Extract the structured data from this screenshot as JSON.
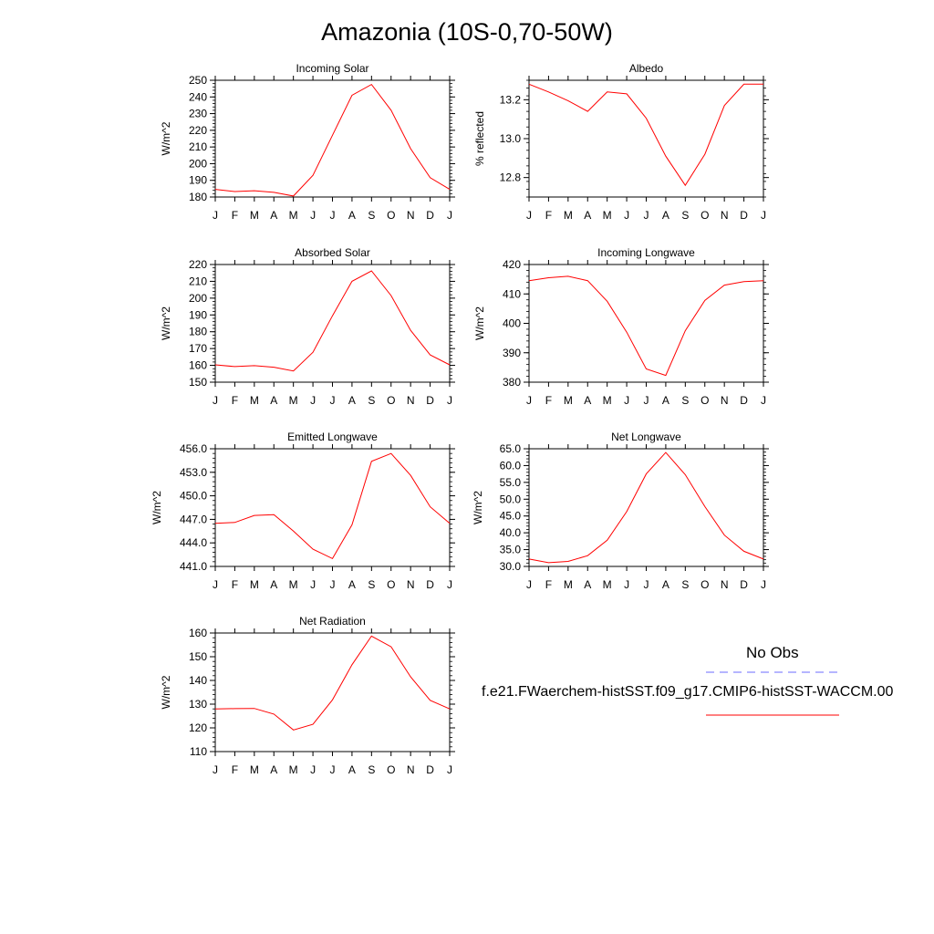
{
  "figure": {
    "title": "Amazonia (10S-0,70-50W)",
    "line_color": "#ff0000",
    "obs_line_color": "#6b6bff"
  },
  "legend": {
    "obs_label": "No Obs",
    "model_label": "f.e21.FWaerchem-histSST.f09_g17.CMIP6-histSST-WACCM.00"
  },
  "chart_data": [
    {
      "type": "line",
      "title": "Incoming Solar",
      "xlabel": "",
      "ylabel": "W/m^2",
      "categories": [
        "J",
        "F",
        "M",
        "A",
        "M",
        "J",
        "J",
        "A",
        "S",
        "O",
        "N",
        "D",
        "J"
      ],
      "ylim": [
        180,
        250
      ],
      "yticks": [
        180,
        190,
        200,
        210,
        220,
        230,
        240,
        250
      ],
      "ytick_decimals": 0,
      "series": [
        {
          "values": [
            184.6,
            183.3,
            183.8,
            182.8,
            180.6,
            193,
            217,
            241,
            247.5,
            232,
            209,
            191.6,
            184.6
          ]
        }
      ]
    },
    {
      "type": "line",
      "title": "Albedo",
      "xlabel": "",
      "ylabel": "% reflected",
      "categories": [
        "J",
        "F",
        "M",
        "A",
        "M",
        "J",
        "J",
        "A",
        "S",
        "O",
        "N",
        "D",
        "J"
      ],
      "ylim": [
        12.7,
        13.3
      ],
      "yticks": [
        12.8,
        13.0,
        13.2
      ],
      "ytick_decimals": 1,
      "series": [
        {
          "values": [
            13.28,
            13.24,
            13.195,
            13.14,
            13.24,
            13.23,
            13.105,
            12.91,
            12.76,
            12.92,
            13.17,
            13.28,
            13.28
          ]
        }
      ]
    },
    {
      "type": "line",
      "title": "Absorbed Solar",
      "xlabel": "",
      "ylabel": "W/m^2",
      "categories": [
        "J",
        "F",
        "M",
        "A",
        "M",
        "J",
        "J",
        "A",
        "S",
        "O",
        "N",
        "D",
        "J"
      ],
      "ylim": [
        150,
        220
      ],
      "yticks": [
        150,
        160,
        170,
        180,
        190,
        200,
        210,
        220
      ],
      "ytick_decimals": 0,
      "series": [
        {
          "values": [
            160.3,
            159.3,
            159.8,
            158.9,
            156.7,
            167.8,
            189.5,
            210,
            216.2,
            201.5,
            180.8,
            166.2,
            160.3
          ]
        }
      ]
    },
    {
      "type": "line",
      "title": "Incoming Longwave",
      "xlabel": "",
      "ylabel": "W/m^2",
      "categories": [
        "J",
        "F",
        "M",
        "A",
        "M",
        "J",
        "J",
        "A",
        "S",
        "O",
        "N",
        "D",
        "J"
      ],
      "ylim": [
        380,
        420
      ],
      "yticks": [
        380,
        390,
        400,
        410,
        420
      ],
      "ytick_decimals": 0,
      "series": [
        {
          "values": [
            414.5,
            415.5,
            416,
            414.5,
            407.5,
            397,
            384.5,
            382.3,
            397.5,
            407.8,
            413,
            414.2,
            414.5
          ]
        }
      ]
    },
    {
      "type": "line",
      "title": "Emitted Longwave",
      "xlabel": "",
      "ylabel": "W/m^2",
      "categories": [
        "J",
        "F",
        "M",
        "A",
        "M",
        "J",
        "J",
        "A",
        "S",
        "O",
        "N",
        "D",
        "J"
      ],
      "ylim": [
        441,
        456
      ],
      "yticks": [
        441,
        444,
        447,
        450,
        453,
        456
      ],
      "ytick_decimals": 1,
      "series": [
        {
          "values": [
            446.5,
            446.6,
            447.5,
            447.6,
            445.5,
            443.2,
            442,
            446.3,
            454.4,
            455.4,
            452.6,
            448.6,
            446.5
          ]
        }
      ]
    },
    {
      "type": "line",
      "title": "Net Longwave",
      "xlabel": "",
      "ylabel": "W/m^2",
      "categories": [
        "J",
        "F",
        "M",
        "A",
        "M",
        "J",
        "J",
        "A",
        "S",
        "O",
        "N",
        "D",
        "J"
      ],
      "ylim": [
        30,
        65
      ],
      "yticks": [
        30,
        35,
        40,
        45,
        50,
        55,
        60,
        65
      ],
      "ytick_decimals": 1,
      "series": [
        {
          "values": [
            32.2,
            31.1,
            31.5,
            33.2,
            37.8,
            46.3,
            57.5,
            63.9,
            57.3,
            47.8,
            39.3,
            34.5,
            32.2
          ]
        }
      ]
    },
    {
      "type": "line",
      "title": "Net Radiation",
      "xlabel": "",
      "ylabel": "W/m^2",
      "categories": [
        "J",
        "F",
        "M",
        "A",
        "M",
        "J",
        "J",
        "A",
        "S",
        "O",
        "N",
        "D",
        "J"
      ],
      "ylim": [
        110,
        160
      ],
      "yticks": [
        110,
        120,
        130,
        140,
        150,
        160
      ],
      "ytick_decimals": 0,
      "series": [
        {
          "values": [
            128,
            128.1,
            128.2,
            125.8,
            119.1,
            121.5,
            131.8,
            146.6,
            158.7,
            154.2,
            141.5,
            131.6,
            128
          ]
        }
      ]
    }
  ]
}
